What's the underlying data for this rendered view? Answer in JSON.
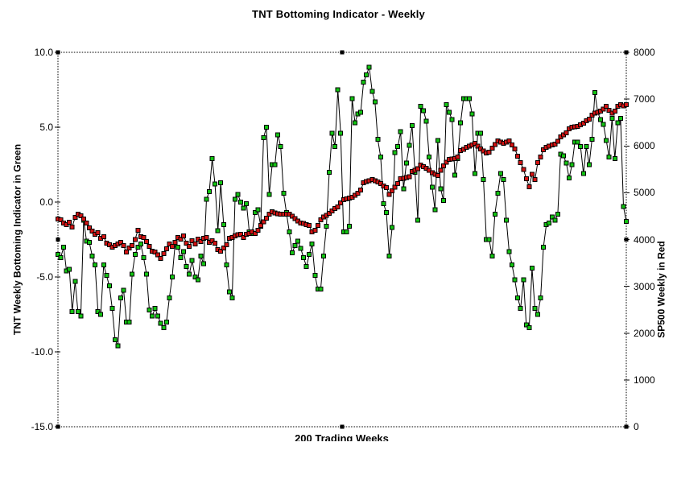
{
  "title": "TNT Bottoming Indicator - Weekly",
  "left_axis": {
    "title": "TNT Weekly Bottoming Indicator in Green",
    "tick_labels": [
      "10.0",
      "5.0",
      "0.0",
      "-5.0",
      "-10.0",
      "-15.0"
    ]
  },
  "right_axis": {
    "title": "SP500 Weekly in Red",
    "tick_labels": [
      "8000",
      "7000",
      "6000",
      "5000",
      "4000",
      "3000",
      "2000",
      "1000",
      "0"
    ]
  },
  "x_axis": {
    "title": "200 Trading Weeks"
  },
  "colors": {
    "indicator_marker": "#12C412",
    "sp500_marker": "#D31414",
    "series_line": "#000000",
    "frame": "#000000",
    "background": "#FFFFFF"
  },
  "chart_data": {
    "type": "line",
    "title": "TNT Bottoming Indicator - Weekly",
    "xlabel": "200 Trading Weeks",
    "x": "trading weeks 1-200, unlabeled category axis",
    "left_ylim": [
      -15,
      10
    ],
    "right_ylim": [
      0,
      8000
    ],
    "left_ticks": [
      10,
      5,
      0,
      -5,
      -10,
      -15
    ],
    "right_ticks": [
      8000,
      7000,
      6000,
      5000,
      4000,
      3000,
      2000,
      1000,
      0
    ],
    "grid": false,
    "legend": "none - series identified by colored square markers and axis titles",
    "frame_style": "dotted box with black selection handles at corners and edge midpoints",
    "series": [
      {
        "name": "TNT Weekly Bottoming Indicator",
        "axis": "left",
        "marker": "square",
        "marker_color": "#12C412",
        "line_color": "#000000",
        "values": [
          -3.5,
          -3.7,
          -3.0,
          -4.6,
          -4.5,
          -7.3,
          -5.3,
          -7.3,
          -7.6,
          -1.2,
          -2.6,
          -2.7,
          -3.6,
          -4.2,
          -7.3,
          -7.5,
          -4.2,
          -4.9,
          -5.6,
          -7.1,
          -9.2,
          -9.6,
          -6.4,
          -5.9,
          -8.0,
          -8.0,
          -4.8,
          -3.5,
          -3.0,
          -2.8,
          -3.7,
          -4.8,
          -7.2,
          -7.6,
          -7.1,
          -7.6,
          -8.1,
          -8.4,
          -8.0,
          -6.4,
          -5.0,
          -2.8,
          -3.0,
          -3.7,
          -3.3,
          -4.3,
          -4.8,
          -3.9,
          -5.0,
          -5.2,
          -3.6,
          -4.1,
          0.2,
          0.7,
          2.9,
          1.2,
          -1.9,
          1.3,
          -1.5,
          -4.2,
          -6.0,
          -6.4,
          0.2,
          0.5,
          0.0,
          -0.4,
          -0.1,
          -2.0,
          -2.1,
          -0.7,
          -0.5,
          -1.6,
          4.3,
          5.0,
          0.5,
          2.5,
          2.5,
          4.5,
          3.7,
          0.6,
          -0.7,
          -2.0,
          -3.4,
          -2.9,
          -2.6,
          -3.1,
          -3.7,
          -4.3,
          -3.5,
          -2.8,
          -4.9,
          -5.8,
          -5.8,
          -3.6,
          -1.6,
          2.0,
          4.6,
          3.7,
          7.5,
          4.6,
          -2.0,
          -2.0,
          -1.6,
          6.9,
          5.3,
          5.9,
          6.0,
          8.0,
          8.5,
          9.0,
          7.4,
          6.7,
          4.2,
          3.0,
          -0.1,
          -0.7,
          -3.6,
          -1.7,
          3.3,
          3.7,
          4.7,
          0.9,
          2.6,
          3.8,
          5.1,
          2.0,
          -1.2,
          6.4,
          6.1,
          5.4,
          3.0,
          1.0,
          -0.5,
          4.1,
          0.9,
          0.1,
          6.5,
          6.0,
          5.5,
          1.8,
          2.9,
          5.3,
          6.9,
          6.9,
          6.9,
          5.9,
          1.9,
          4.6,
          4.6,
          1.5,
          -2.5,
          -2.5,
          -3.6,
          -0.8,
          0.6,
          1.9,
          1.5,
          -1.2,
          -3.3,
          -4.2,
          -5.2,
          -6.4,
          -7.1,
          -5.2,
          -8.2,
          -8.4,
          -4.4,
          -7.1,
          -7.5,
          -6.4,
          -3.0,
          -1.5,
          -1.4,
          -1.0,
          -1.2,
          -0.8,
          3.2,
          3.1,
          2.6,
          1.6,
          2.5,
          4.0,
          4.0,
          3.7,
          1.9,
          3.7,
          2.5,
          4.2,
          7.3,
          6.0,
          5.5,
          5.2,
          4.1,
          3.0,
          5.6,
          2.9,
          5.3,
          5.6,
          -0.3,
          -1.3
        ]
      },
      {
        "name": "SP500 Weekly",
        "axis": "right",
        "marker": "square",
        "marker_color": "#D31414",
        "line_color": "#000000",
        "values": [
          4440,
          4420,
          4350,
          4315,
          4370,
          4270,
          4475,
          4545,
          4510,
          4440,
          4355,
          4250,
          4180,
          4115,
          4150,
          4030,
          4060,
          3925,
          3890,
          3840,
          3870,
          3905,
          3940,
          3870,
          3730,
          3820,
          3870,
          4000,
          4200,
          4060,
          4045,
          3960,
          3855,
          3750,
          3735,
          3670,
          3600,
          3700,
          3800,
          3905,
          3855,
          3940,
          4045,
          4010,
          4080,
          3925,
          3855,
          3975,
          3905,
          4010,
          3960,
          4030,
          4045,
          3940,
          3975,
          3925,
          3785,
          3750,
          3820,
          3890,
          4030,
          4045,
          4080,
          4100,
          4115,
          4045,
          4115,
          4130,
          4165,
          4130,
          4200,
          4300,
          4380,
          4460,
          4540,
          4590,
          4570,
          4550,
          4540,
          4545,
          4540,
          4540,
          4500,
          4450,
          4400,
          4355,
          4340,
          4320,
          4300,
          4160,
          4200,
          4300,
          4425,
          4480,
          4520,
          4560,
          4615,
          4660,
          4700,
          4785,
          4850,
          4870,
          4890,
          4905,
          4950,
          4990,
          5060,
          5210,
          5240,
          5260,
          5280,
          5260,
          5230,
          5195,
          5140,
          5110,
          4960,
          5040,
          5120,
          5200,
          5300,
          5310,
          5325,
          5340,
          5450,
          5480,
          5510,
          5590,
          5560,
          5520,
          5480,
          5430,
          5390,
          5370,
          5480,
          5570,
          5650,
          5710,
          5720,
          5730,
          5760,
          5900,
          5930,
          5970,
          6000,
          6020,
          6055,
          6000,
          5935,
          5890,
          5850,
          5870,
          5950,
          6030,
          6110,
          6080,
          6055,
          6080,
          6110,
          6020,
          5935,
          5780,
          5645,
          5500,
          5300,
          5130,
          5390,
          5280,
          5645,
          5760,
          5920,
          5970,
          6000,
          6020,
          6040,
          6100,
          6195,
          6240,
          6280,
          6365,
          6400,
          6410,
          6420,
          6450,
          6485,
          6535,
          6570,
          6655,
          6705,
          6720,
          6740,
          6790,
          6845,
          6760,
          6700,
          6740,
          6845,
          6880,
          6860,
          6880
        ]
      }
    ]
  }
}
